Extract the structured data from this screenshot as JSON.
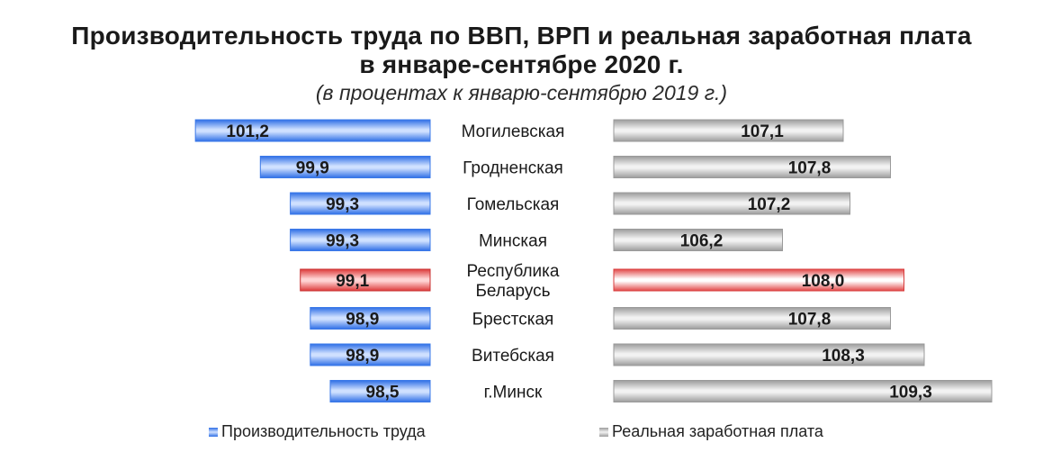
{
  "title_line1": "Производительность труда по ВВП, ВРП и реальная заработная плата",
  "title_line2": "в январе-сентябре 2020 г.",
  "subtitle": "(в процентах к январю-сентябрю 2019 г.)",
  "colors": {
    "productivity": "#4a8df0",
    "wage": "#b8b8b8",
    "highlight": "#e44a4a"
  },
  "chart_data": {
    "type": "bar",
    "orientation": "horizontal",
    "layout": "butterfly",
    "categories": [
      [
        "Могилевская"
      ],
      [
        "Гродненская"
      ],
      [
        "Гомельская"
      ],
      [
        "Минская"
      ],
      [
        "Республика",
        "Беларусь"
      ],
      [
        "Брестская"
      ],
      [
        "Витебская"
      ],
      [
        "г.Минск"
      ]
    ],
    "highlight_index": 4,
    "series": [
      {
        "name": "Производительность труда",
        "values": [
          101.2,
          99.9,
          99.3,
          99.3,
          99.1,
          98.9,
          98.9,
          98.5
        ],
        "labels": [
          "101,2",
          "99,9",
          "99,3",
          "99,3",
          "99,1",
          "98,9",
          "98,9",
          "98,5"
        ]
      },
      {
        "name": "Реальная заработная плата",
        "values": [
          107.1,
          107.8,
          107.2,
          106.2,
          108.0,
          107.8,
          108.3,
          109.3
        ],
        "labels": [
          "107,1",
          "107,8",
          "107,2",
          "106,2",
          "108,0",
          "107,8",
          "108,3",
          "109,3"
        ]
      }
    ],
    "legend_position": "bottom",
    "grid": false
  }
}
